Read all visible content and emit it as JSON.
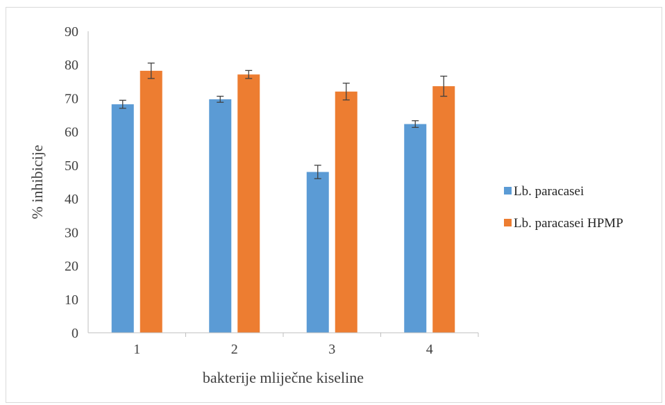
{
  "chart_data": {
    "type": "bar",
    "title": "",
    "xlabel": "bakterije mliječne kiseline",
    "ylabel": "% inhibicije",
    "categories": [
      "1",
      "2",
      "3",
      "4"
    ],
    "ylim": [
      0,
      90
    ],
    "yticks": [
      0,
      10,
      20,
      30,
      40,
      50,
      60,
      70,
      80,
      90
    ],
    "grid": false,
    "legend_position": "right",
    "series": [
      {
        "name": "Lb. paracasei",
        "color": "#5b9bd5",
        "values": [
          68.2,
          69.7,
          48.0,
          62.3
        ],
        "errors": [
          1.2,
          0.9,
          2.0,
          1.0
        ]
      },
      {
        "name": "Lb. paracasei HPMP",
        "color": "#ed7d31",
        "values": [
          78.2,
          77.1,
          72.0,
          73.6
        ],
        "errors": [
          2.3,
          1.2,
          2.5,
          3.0
        ]
      }
    ]
  }
}
